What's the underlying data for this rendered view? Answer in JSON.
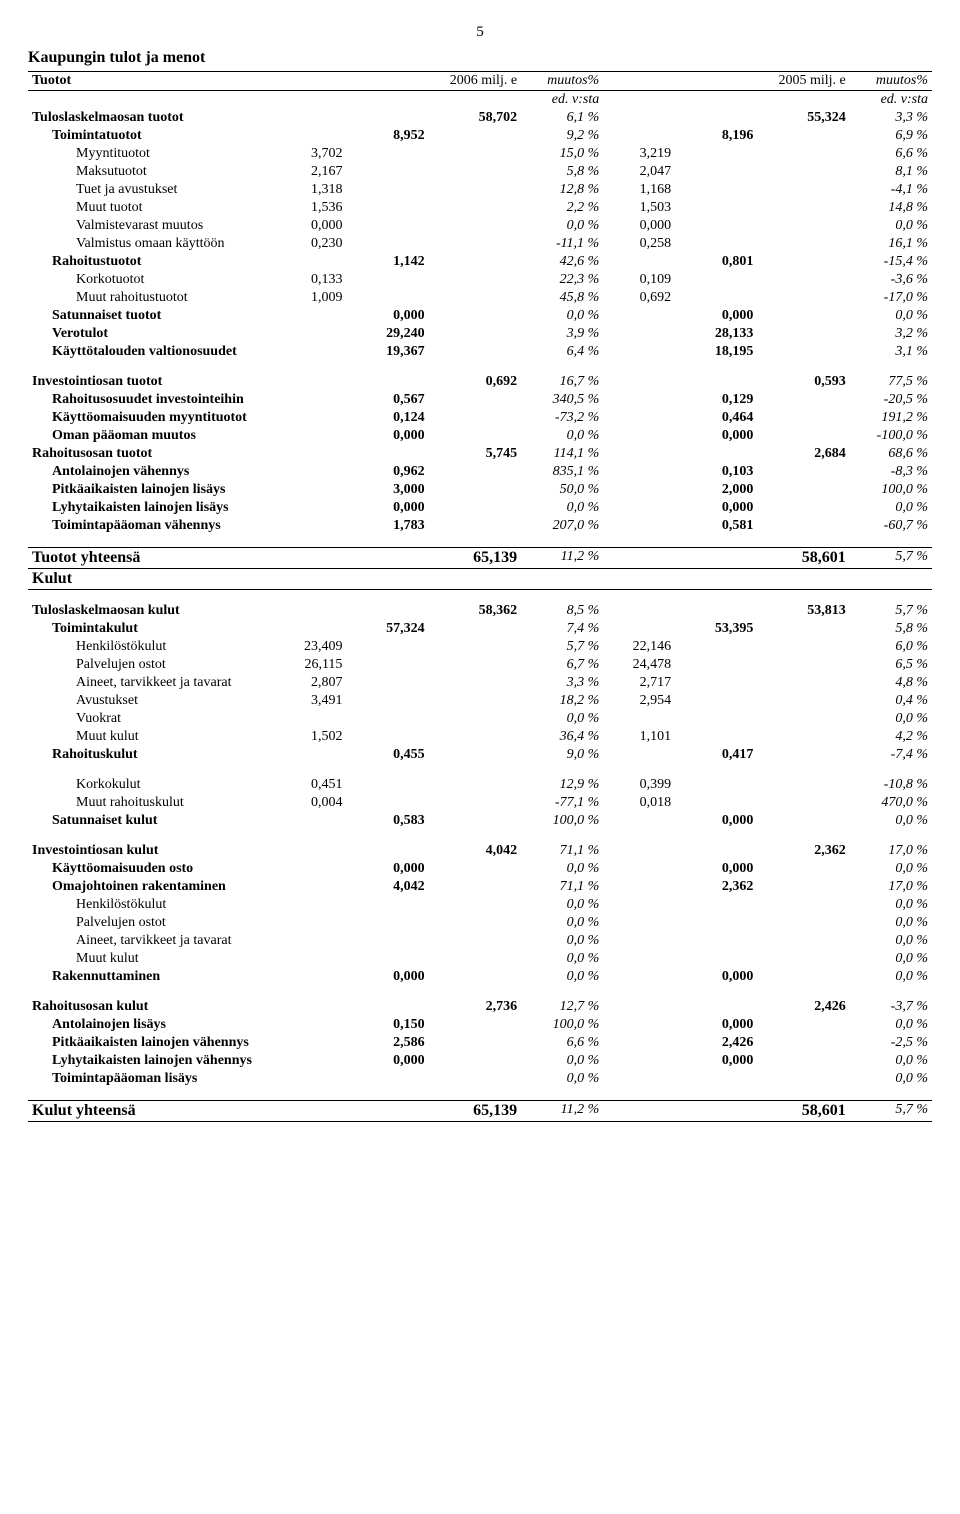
{
  "page_number": "5",
  "main_title": "Kaupungin tulot ja menot",
  "header": {
    "col1": "Tuotot",
    "col2": "2006 milj. e",
    "col3": "muutos%",
    "col4": "2005 milj. e",
    "col5": "muutos%",
    "sub": "ed. v:sta"
  },
  "tuotot": {
    "s1": {
      "label": "Tuloslaskelmaosan tuotot",
      "v3": "58,702",
      "p1": "6,1 %",
      "v6": "55,324",
      "p2": "3,3 %",
      "rows": [
        {
          "label": "Toimintatuotot",
          "v2": "8,952",
          "p1": "9,2 %",
          "v5": "8,196",
          "p2": "6,9 %",
          "bold": true,
          "ind": 1
        },
        {
          "label": "Myyntituotot",
          "v1": "3,702",
          "p1": "15,0 %",
          "v4": "3,219",
          "p2": "6,6 %",
          "ind": 2
        },
        {
          "label": "Maksutuotot",
          "v1": "2,167",
          "p1": "5,8 %",
          "v4": "2,047",
          "p2": "8,1 %",
          "ind": 2
        },
        {
          "label": "Tuet ja avustukset",
          "v1": "1,318",
          "p1": "12,8 %",
          "v4": "1,168",
          "p2": "-4,1 %",
          "ind": 2
        },
        {
          "label": "Muut tuotot",
          "v1": "1,536",
          "p1": "2,2 %",
          "v4": "1,503",
          "p2": "14,8 %",
          "ind": 2
        },
        {
          "label": "Valmistevarast muutos",
          "v1": "0,000",
          "p1": "0,0 %",
          "v4": "0,000",
          "p2": "0,0 %",
          "ind": 2
        },
        {
          "label": "Valmistus omaan käyttöön",
          "v1": "0,230",
          "p1": "-11,1 %",
          "v4": "0,258",
          "p2": "16,1 %",
          "ind": 2
        },
        {
          "label": "Rahoitustuotot",
          "v2": "1,142",
          "p1": "42,6 %",
          "v5": "0,801",
          "p2": "-15,4 %",
          "bold": true,
          "ind": 1
        },
        {
          "label": "Korkotuotot",
          "v1": "0,133",
          "p1": "22,3 %",
          "v4": "0,109",
          "p2": "-3,6 %",
          "ind": 2
        },
        {
          "label": "Muut rahoitustuotot",
          "v1": "1,009",
          "p1": "45,8 %",
          "v4": "0,692",
          "p2": "-17,0 %",
          "ind": 2
        },
        {
          "label": "Satunnaiset tuotot",
          "v2": "0,000",
          "p1": "0,0 %",
          "v5": "0,000",
          "p2": "0,0 %",
          "bold": true,
          "ind": 1
        },
        {
          "label": "Verotulot",
          "v2": "29,240",
          "p1": "3,9 %",
          "v5": "28,133",
          "p2": "3,2 %",
          "bold": true,
          "ind": 1
        },
        {
          "label": "Käyttötalouden valtionosuudet",
          "v2": "19,367",
          "p1": "6,4 %",
          "v5": "18,195",
          "p2": "3,1 %",
          "bold": true,
          "ind": 1
        }
      ]
    },
    "s2": {
      "label": "Investointiosan tuotot",
      "v3": "0,692",
      "p1": "16,7 %",
      "v6": "0,593",
      "p2": "77,5 %",
      "rows": [
        {
          "label": "Rahoitusosuudet investointeihin",
          "v2": "0,567",
          "p1": "340,5 %",
          "v5": "0,129",
          "p2": "-20,5 %",
          "bold": true,
          "ind": 1
        },
        {
          "label": "Käyttöomaisuuden myyntituotot",
          "v2": "0,124",
          "p1": "-73,2 %",
          "v5": "0,464",
          "p2": "191,2 %",
          "bold": true,
          "ind": 1
        },
        {
          "label": "Oman pääoman muutos",
          "v2": "0,000",
          "p1": "0,0 %",
          "v5": "0,000",
          "p2": "-100,0 %",
          "bold": true,
          "ind": 1
        }
      ]
    },
    "s3": {
      "label": "Rahoitusosan tuotot",
      "v3": "5,745",
      "p1": "114,1 %",
      "v6": "2,684",
      "p2": "68,6 %",
      "rows": [
        {
          "label": "Antolainojen vähennys",
          "v2": "0,962",
          "p1": "835,1 %",
          "v5": "0,103",
          "p2": "-8,3 %",
          "bold": true,
          "ind": 1
        },
        {
          "label": "Pitkäaikaisten lainojen lisäys",
          "v2": "3,000",
          "p1": "50,0 %",
          "v5": "2,000",
          "p2": "100,0 %",
          "bold": true,
          "ind": 1
        },
        {
          "label": "Lyhytaikaisten lainojen lisäys",
          "v2": "0,000",
          "p1": "0,0 %",
          "v5": "0,000",
          "p2": "0,0 %",
          "bold": true,
          "ind": 1
        },
        {
          "label": "Toimintapääoman vähennys",
          "v2": "1,783",
          "p1": "207,0 %",
          "v5": "0,581",
          "p2": "-60,7 %",
          "bold": true,
          "ind": 1
        }
      ]
    },
    "total": {
      "label": "Tuotot yhteensä",
      "v3": "65,139",
      "p1": "11,2 %",
      "v6": "58,601",
      "p2": "5,7 %"
    }
  },
  "kulut_title": "Kulut",
  "kulut": {
    "s1": {
      "label": "Tuloslaskelmaosan kulut",
      "v3": "58,362",
      "p1": "8,5 %",
      "v6": "53,813",
      "p2": "5,7 %",
      "rows": [
        {
          "label": "Toimintakulut",
          "v2": "57,324",
          "p1": "7,4 %",
          "v5": "53,395",
          "p2": "5,8 %",
          "bold": true,
          "ind": 1
        },
        {
          "label": "Henkilöstökulut",
          "v1": "23,409",
          "p1": "5,7 %",
          "v4": "22,146",
          "p2": "6,0 %",
          "ind": 2
        },
        {
          "label": "Palvelujen ostot",
          "v1": "26,115",
          "p1": "6,7 %",
          "v4": "24,478",
          "p2": "6,5 %",
          "ind": 2
        },
        {
          "label": "Aineet, tarvikkeet ja tavarat",
          "v1": "2,807",
          "p1": "3,3 %",
          "v4": "2,717",
          "p2": "4,8 %",
          "ind": 2
        },
        {
          "label": "Avustukset",
          "v1": "3,491",
          "p1": "18,2 %",
          "v4": "2,954",
          "p2": "0,4 %",
          "ind": 2
        },
        {
          "label": "Vuokrat",
          "p1": "0,0 %",
          "p2": "0,0 %",
          "ind": 2
        },
        {
          "label": "Muut kulut",
          "v1": "1,502",
          "p1": "36,4 %",
          "v4": "1,101",
          "p2": "4,2 %",
          "ind": 2
        },
        {
          "label": "Rahoituskulut",
          "v2": "0,455",
          "p1": "9,0 %",
          "v5": "0,417",
          "p2": "-7,4 %",
          "bold": true,
          "ind": 1
        }
      ]
    },
    "s1b": {
      "rows": [
        {
          "label": "Korkokulut",
          "v1": "0,451",
          "p1": "12,9 %",
          "v4": "0,399",
          "p2": "-10,8 %",
          "ind": 2
        },
        {
          "label": "Muut rahoituskulut",
          "v1": "0,004",
          "p1": "-77,1 %",
          "v4": "0,018",
          "p2": "470,0 %",
          "ind": 2
        },
        {
          "label": "Satunnaiset kulut",
          "v2": "0,583",
          "p1": "100,0 %",
          "v5": "0,000",
          "p2": "0,0 %",
          "bold": true,
          "ind": 1
        }
      ]
    },
    "s2": {
      "label": "Investointiosan kulut",
      "v3": "4,042",
      "p1": "71,1 %",
      "v6": "2,362",
      "p2": "17,0 %",
      "rows": [
        {
          "label": "Käyttöomaisuuden osto",
          "v2": "0,000",
          "p1": "0,0 %",
          "v5": "0,000",
          "p2": "0,0 %",
          "bold": true,
          "ind": 1
        },
        {
          "label": "Omajohtoinen rakentaminen",
          "v2": "4,042",
          "p1": "71,1 %",
          "v5": "2,362",
          "p2": "17,0 %",
          "bold": true,
          "ind": 1
        },
        {
          "label": "Henkilöstökulut",
          "p1": "0,0 %",
          "p2": "0,0 %",
          "ind": 2
        },
        {
          "label": "Palvelujen ostot",
          "p1": "0,0 %",
          "p2": "0,0 %",
          "ind": 2
        },
        {
          "label": "Aineet, tarvikkeet ja tavarat",
          "p1": "0,0 %",
          "p2": "0,0 %",
          "ind": 2
        },
        {
          "label": "Muut kulut",
          "p1": "0,0 %",
          "p2": "0,0 %",
          "ind": 2
        },
        {
          "label": "Rakennuttaminen",
          "v2": "0,000",
          "p1": "0,0 %",
          "v5": "0,000",
          "p2": "0,0 %",
          "bold": true,
          "ind": 1
        }
      ]
    },
    "s3": {
      "label": "Rahoitusosan kulut",
      "v3": "2,736",
      "p1": "12,7 %",
      "v6": "2,426",
      "p2": "-3,7 %",
      "rows": [
        {
          "label": "Antolainojen lisäys",
          "v2": "0,150",
          "p1": "100,0 %",
          "v5": "0,000",
          "p2": "0,0 %",
          "bold": true,
          "ind": 1
        },
        {
          "label": "Pitkäaikaisten lainojen vähennys",
          "v2": "2,586",
          "p1": "6,6 %",
          "v5": "2,426",
          "p2": "-2,5 %",
          "bold": true,
          "ind": 1
        },
        {
          "label": "Lyhytaikaisten lainojen vähennys",
          "v2": "0,000",
          "p1": "0,0 %",
          "v5": "0,000",
          "p2": "0,0 %",
          "bold": true,
          "ind": 1
        },
        {
          "label": "Toimintapääoman lisäys",
          "p1": "0,0 %",
          "p2": "0,0 %",
          "bold": true,
          "ind": 1
        }
      ]
    },
    "total": {
      "label": "Kulut yhteensä",
      "v3": "65,139",
      "p1": "11,2 %",
      "v6": "58,601",
      "p2": "5,7 %"
    }
  }
}
